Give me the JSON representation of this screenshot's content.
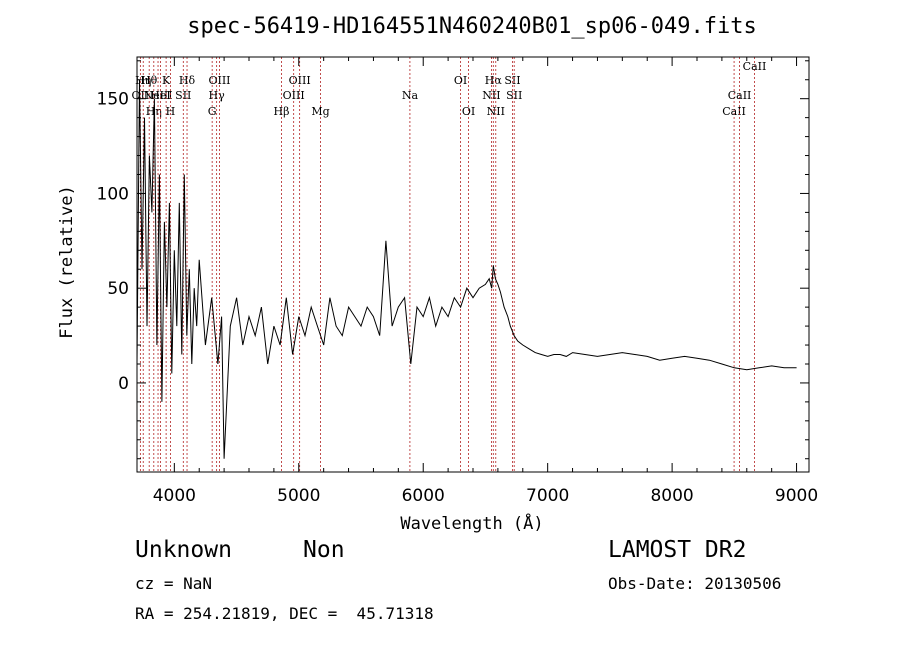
{
  "chart_data": {
    "type": "line",
    "title": "spec-56419-HD164551N460240B01_sp06-049.fits",
    "xlabel": "Wavelength (Å)",
    "ylabel": "Flux (relative)",
    "xlim": [
      3700,
      9100
    ],
    "ylim": [
      -47,
      172
    ],
    "xticks": [
      4000,
      5000,
      6000,
      7000,
      8000,
      9000
    ],
    "yticks": [
      0,
      50,
      100,
      150
    ],
    "xtick_labels": [
      "4000",
      "5000",
      "6000",
      "7000",
      "8000",
      "9000"
    ],
    "ytick_labels": [
      "0",
      "50",
      "100",
      "150"
    ],
    "grid": false,
    "line_color": "#000000",
    "marker_color": "#b22222",
    "series": [
      {
        "x": [
          3700,
          3720,
          3740,
          3760,
          3780,
          3800,
          3820,
          3840,
          3860,
          3880,
          3900,
          3920,
          3940,
          3960,
          3980,
          4000,
          4020,
          4040,
          4060,
          4080,
          4100,
          4120,
          4140,
          4160,
          4180,
          4200,
          4250,
          4300,
          4350,
          4380,
          4400,
          4450,
          4500,
          4550,
          4600,
          4650,
          4700,
          4750,
          4800,
          4850,
          4900,
          4950,
          5000,
          5050,
          5100,
          5150,
          5200,
          5250,
          5300,
          5350,
          5400,
          5450,
          5500,
          5550,
          5600,
          5650,
          5700,
          5750,
          5800,
          5850,
          5900,
          5950,
          6000,
          6050,
          6100,
          6150,
          6200,
          6250,
          6300,
          6350,
          6400,
          6450,
          6500,
          6530,
          6550,
          6563,
          6580,
          6600,
          6620,
          6650,
          6680,
          6700,
          6730,
          6760,
          6800,
          6850,
          6900,
          6950,
          7000,
          7050,
          7100,
          7150,
          7200,
          7300,
          7400,
          7500,
          7600,
          7700,
          7800,
          7900,
          8000,
          8100,
          8200,
          8300,
          8400,
          8500,
          8600,
          8700,
          8800,
          8900,
          9000
        ],
        "y": [
          10,
          160,
          60,
          140,
          30,
          120,
          90,
          150,
          20,
          110,
          -10,
          85,
          40,
          95,
          5,
          70,
          30,
          95,
          15,
          110,
          25,
          60,
          10,
          50,
          30,
          65,
          20,
          45,
          10,
          35,
          -40,
          30,
          45,
          20,
          35,
          25,
          40,
          10,
          30,
          20,
          45,
          15,
          35,
          25,
          40,
          30,
          20,
          45,
          30,
          25,
          40,
          35,
          30,
          40,
          35,
          25,
          75,
          30,
          40,
          45,
          10,
          40,
          35,
          45,
          30,
          40,
          35,
          45,
          40,
          50,
          45,
          50,
          52,
          55,
          50,
          62,
          55,
          52,
          48,
          40,
          35,
          30,
          25,
          22,
          20,
          18,
          16,
          15,
          14,
          15,
          15,
          14,
          16,
          15,
          14,
          15,
          16,
          15,
          14,
          12,
          13,
          14,
          13,
          12,
          10,
          8,
          7,
          8,
          9,
          8,
          8
        ]
      }
    ],
    "line_markers": [
      {
        "wavelength": 3727,
        "label": "OII",
        "row": 2
      },
      {
        "wavelength": 3750,
        "label": "Hη",
        "row": 1
      },
      {
        "wavelength": 3798,
        "label": "Hθ",
        "row": 1
      },
      {
        "wavelength": 3835,
        "label": "Hη",
        "row": 3
      },
      {
        "wavelength": 3869,
        "label": "NeIII",
        "row": 2
      },
      {
        "wavelength": 3889,
        "label": "HeI",
        "row": 2
      },
      {
        "wavelength": 3934,
        "label": "K",
        "row": 1
      },
      {
        "wavelength": 3969,
        "label": "H",
        "row": 3
      },
      {
        "wavelength": 4072,
        "label": "SII",
        "row": 2
      },
      {
        "wavelength": 4102,
        "label": "Hδ",
        "row": 1
      },
      {
        "wavelength": 4304,
        "label": "G",
        "row": 3
      },
      {
        "wavelength": 4340,
        "label": "Hγ",
        "row": 2
      },
      {
        "wavelength": 4363,
        "label": "OIII",
        "row": 1
      },
      {
        "wavelength": 4861,
        "label": "Hβ",
        "row": 3
      },
      {
        "wavelength": 4959,
        "label": "OIII",
        "row": 2
      },
      {
        "wavelength": 5007,
        "label": "OIII",
        "row": 1
      },
      {
        "wavelength": 5175,
        "label": "Mg",
        "row": 3
      },
      {
        "wavelength": 5893,
        "label": "Na",
        "row": 2
      },
      {
        "wavelength": 6300,
        "label": "OI",
        "row": 1
      },
      {
        "wavelength": 6364,
        "label": "OI",
        "row": 3
      },
      {
        "wavelength": 6548,
        "label": "NII",
        "row": 2
      },
      {
        "wavelength": 6563,
        "label": "Hα",
        "row": 1
      },
      {
        "wavelength": 6583,
        "label": "NII",
        "row": 3
      },
      {
        "wavelength": 6717,
        "label": "SII",
        "row": 1
      },
      {
        "wavelength": 6731,
        "label": "SII",
        "row": 2
      },
      {
        "wavelength": 8498,
        "label": "CaII",
        "row": 3
      },
      {
        "wavelength": 8542,
        "label": "CaII",
        "row": 2
      },
      {
        "wavelength": 8662,
        "label": "CaII",
        "row": 0
      }
    ]
  },
  "info": {
    "class": "Unknown",
    "subclass": "Non",
    "survey": "LAMOST DR2",
    "cz": "cz = NaN",
    "obs_date": "Obs-Date: 20130506",
    "radec": "RA = 254.21819, DEC =  45.71318"
  }
}
